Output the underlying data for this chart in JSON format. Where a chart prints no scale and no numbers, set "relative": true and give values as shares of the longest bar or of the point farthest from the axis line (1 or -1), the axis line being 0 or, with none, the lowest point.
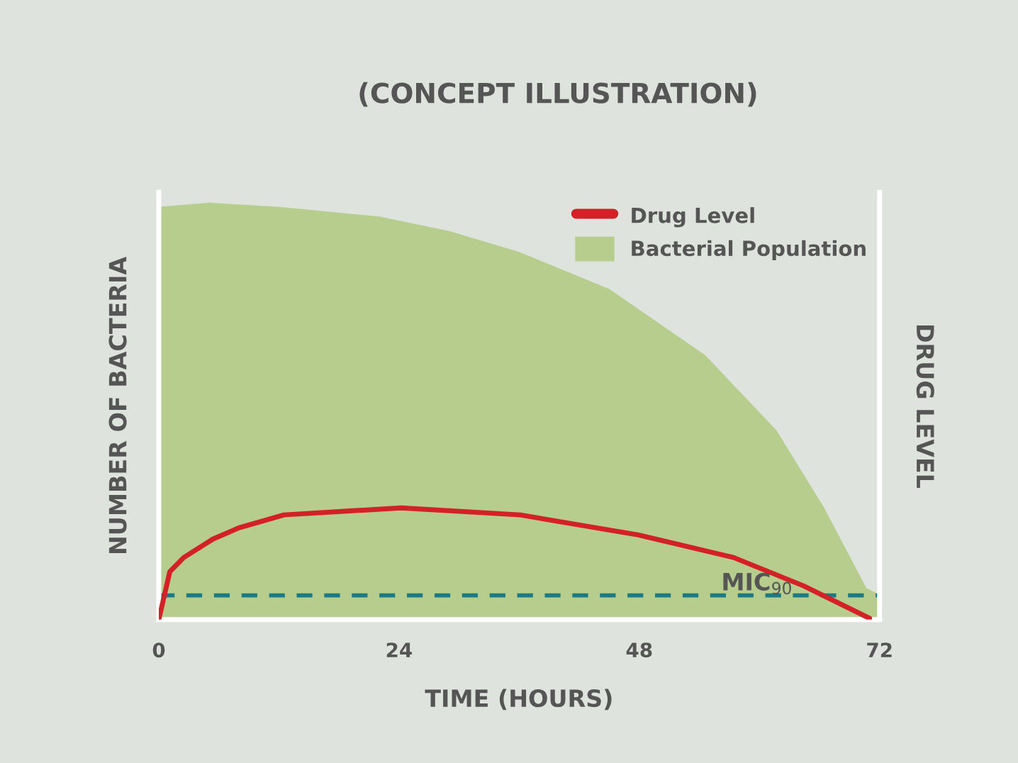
{
  "chart_data": {
    "type": "area",
    "title": "(CONCEPT ILLUSTRATION)",
    "xlabel": "TIME (HOURS)",
    "ylabel": "NUMBER OF BACTERIA",
    "y2label": "DRUG LEVEL",
    "relative": true,
    "xlim": [
      0,
      72
    ],
    "xticks": [
      0,
      24,
      48,
      72
    ],
    "series": [
      {
        "name": "Drug Level",
        "type": "line",
        "color": "#d42027",
        "x": [
          0,
          1.1,
          2.5,
          5.4,
          8,
          12.5,
          24.2,
          36.1,
          47.9,
          57.4,
          64.4,
          71.0
        ],
        "values": [
          0,
          0.115,
          0.149,
          0.193,
          0.22,
          0.251,
          0.268,
          0.251,
          0.203,
          0.149,
          0.081,
          0.003
        ]
      },
      {
        "name": "Bacterial Population",
        "color": "#b7cd8e",
        "x": [
          0,
          5,
          12,
          22,
          29,
          36,
          45,
          54.6,
          61.7,
          66.4,
          70.7,
          72
        ],
        "values": [
          0.99,
          1.0,
          0.99,
          0.967,
          0.932,
          0.882,
          0.793,
          0.634,
          0.454,
          0.271,
          0.075,
          0.06
        ]
      }
    ],
    "ref_lines": [
      {
        "axis": "y",
        "value": 0.058,
        "label": "MIC$_{90}$",
        "color": "#1a7a86",
        "line_style": "dashed"
      }
    ],
    "legend": "top right",
    "grid": false,
    "marker": "none"
  }
}
